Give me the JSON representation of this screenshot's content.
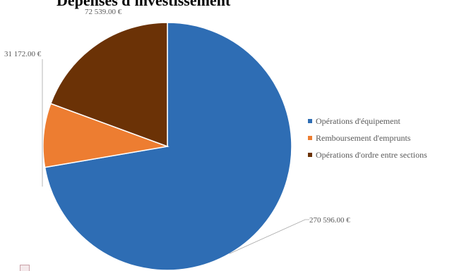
{
  "chart_data": {
    "type": "pie",
    "title": "Dépenses d'investissement",
    "categories": [
      "Opérations d'équipement",
      "Remboursement d'emprunts",
      "Opérations d'ordre entre sections"
    ],
    "values": [
      270596.0,
      31172.0,
      72539.0
    ],
    "data_labels": [
      "270 596.00 €",
      "31 172.00 €",
      "72 539.00 €"
    ],
    "colors": [
      "#2E6DB4",
      "#ED7D31",
      "#6B3206"
    ],
    "start_angle_deg": 0,
    "direction": "clockwise",
    "legend_position": "right"
  }
}
